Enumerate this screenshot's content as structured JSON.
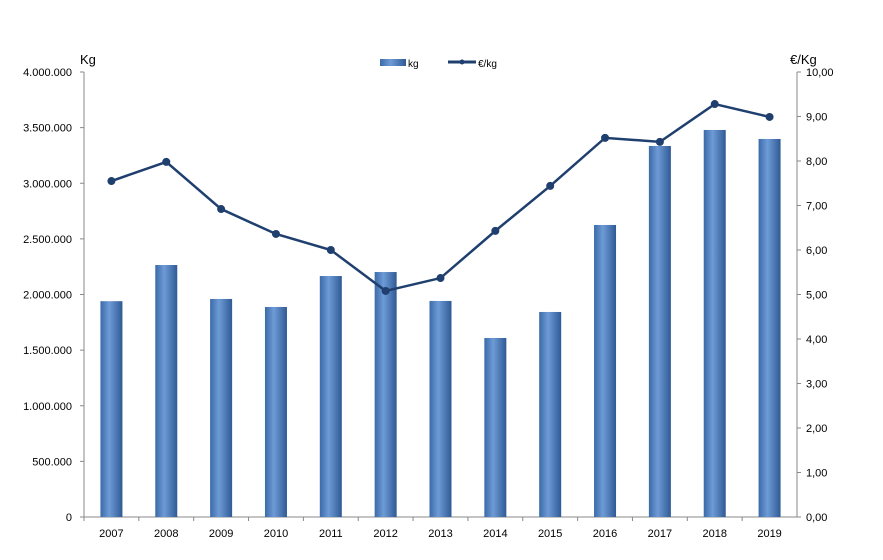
{
  "chart_data": {
    "type": "bar+line",
    "categories": [
      "2007",
      "2008",
      "2009",
      "2010",
      "2011",
      "2012",
      "2013",
      "2014",
      "2015",
      "2016",
      "2017",
      "2018",
      "2019"
    ],
    "series": [
      {
        "name": "kg",
        "type": "bar",
        "axis": "left",
        "color": "#4f81bd",
        "values": [
          1940000,
          2265000,
          1960000,
          1888000,
          2166000,
          2202000,
          1942000,
          1609000,
          1843000,
          2625000,
          3335000,
          3479000,
          3398000
        ]
      },
      {
        "name": "€/kg",
        "type": "line",
        "axis": "right",
        "color": "#1f3f6e",
        "values": [
          7.55,
          7.98,
          6.92,
          6.36,
          6.0,
          5.08,
          5.37,
          6.43,
          7.44,
          8.52,
          8.43,
          9.28,
          8.99
        ]
      }
    ],
    "ylabel_left": "Kg",
    "ylabel_right": "€/Kg",
    "ylim_left": [
      0,
      4000000
    ],
    "ylim_right": [
      0,
      10
    ],
    "yticks_left": [
      "0",
      "500.000",
      "1.000.000",
      "1.500.000",
      "2.000.000",
      "2.500.000",
      "3.000.000",
      "3.500.000",
      "4.000.000"
    ],
    "yticks_right": [
      "0,00",
      "1,00",
      "2,00",
      "3,00",
      "4,00",
      "5,00",
      "6,00",
      "7,00",
      "8,00",
      "9,00",
      "10,00"
    ],
    "legend_position": "top-center",
    "grid": false
  }
}
